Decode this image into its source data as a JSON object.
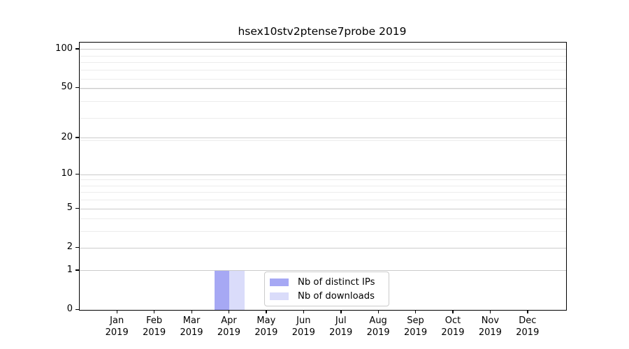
{
  "title": "hsex10stv2ptense7probe 2019",
  "chart_data": {
    "type": "bar",
    "title": "hsex10stv2ptense7probe 2019",
    "categories": [
      "Jan",
      "Feb",
      "Mar",
      "Apr",
      "May",
      "Jun",
      "Jul",
      "Aug",
      "Sep",
      "Oct",
      "Nov",
      "Dec"
    ],
    "category_year": "2019",
    "series": [
      {
        "name": "Nb of distinct IPs",
        "color": "#a6a8f4",
        "values": [
          0,
          0,
          0,
          1,
          0,
          0,
          0,
          0,
          0,
          0,
          0,
          0
        ]
      },
      {
        "name": "Nb of downloads",
        "color": "#dadcfa",
        "values": [
          0,
          0,
          0,
          1,
          0,
          0,
          0,
          0,
          0,
          0,
          0,
          0
        ]
      }
    ],
    "y_axis": {
      "scale": "log10(1+y)",
      "tick_values": [
        0,
        1,
        2,
        5,
        10,
        20,
        50,
        100
      ],
      "tick_labels": [
        "0",
        "1",
        "2",
        "5",
        "10",
        "20",
        "50",
        "100"
      ],
      "minor_tick_values": [
        2,
        3,
        4,
        5,
        6,
        7,
        8,
        9,
        19,
        29,
        39,
        49,
        59,
        69,
        79,
        89
      ],
      "y_max": 113.3,
      "grid": true
    },
    "legend": {
      "position": "inside-bottom-center",
      "entries": [
        "Nb of distinct IPs",
        "Nb of downloads"
      ]
    }
  }
}
